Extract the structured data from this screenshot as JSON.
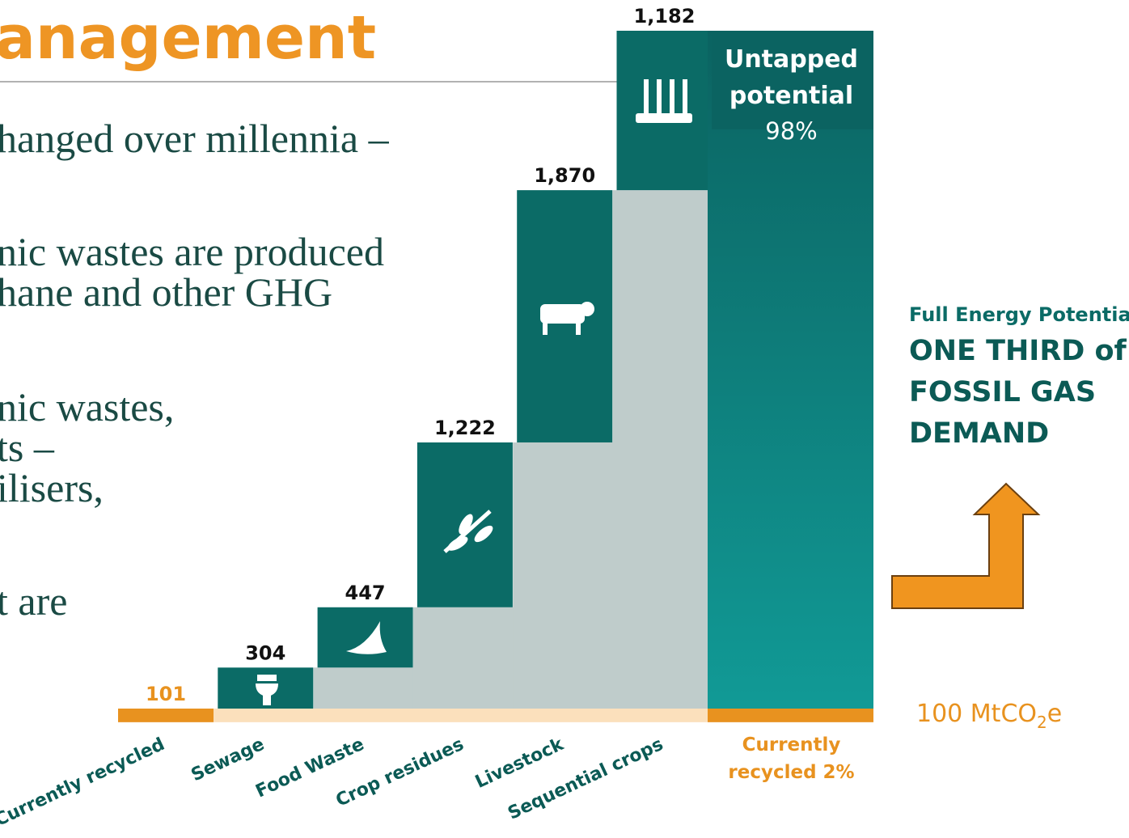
{
  "slide": {
    "title": "anagement",
    "body": [
      "hanged over millennia  –",
      "nic wastes are produced",
      "hane and other GHG",
      "nic wastes,",
      "ts –",
      "ilisers,",
      "t are"
    ],
    "side_heading": "Full Energy Potential:",
    "side_lines": [
      "ONE THIRD of",
      "FOSSIL GAS",
      "DEMAND"
    ]
  },
  "chart_data": {
    "type": "waterfall",
    "categories": [
      "Currently recycled",
      "Sewage",
      "Food Waste",
      "Crop residues",
      "Livestock",
      "Sequential crops"
    ],
    "values": [
      101,
      304,
      447,
      1222,
      1870,
      1182
    ],
    "value_labels": [
      "101",
      "304",
      "447",
      "1,222",
      "1,870",
      "1,182"
    ],
    "colors": {
      "recycled": "#e8921f",
      "step": "#0b6b66",
      "shadow": "#bfcccb",
      "strip": "#fbe0bc",
      "total_top": "#0b6361",
      "total_bottom": "#119a96"
    },
    "total_label": [
      "Untapped",
      "potential"
    ],
    "total_value_label": "98%",
    "recycled_label": [
      "Currently",
      "recycled 2%"
    ],
    "unit_label": [
      "100 MtCO",
      "2",
      "e"
    ]
  }
}
